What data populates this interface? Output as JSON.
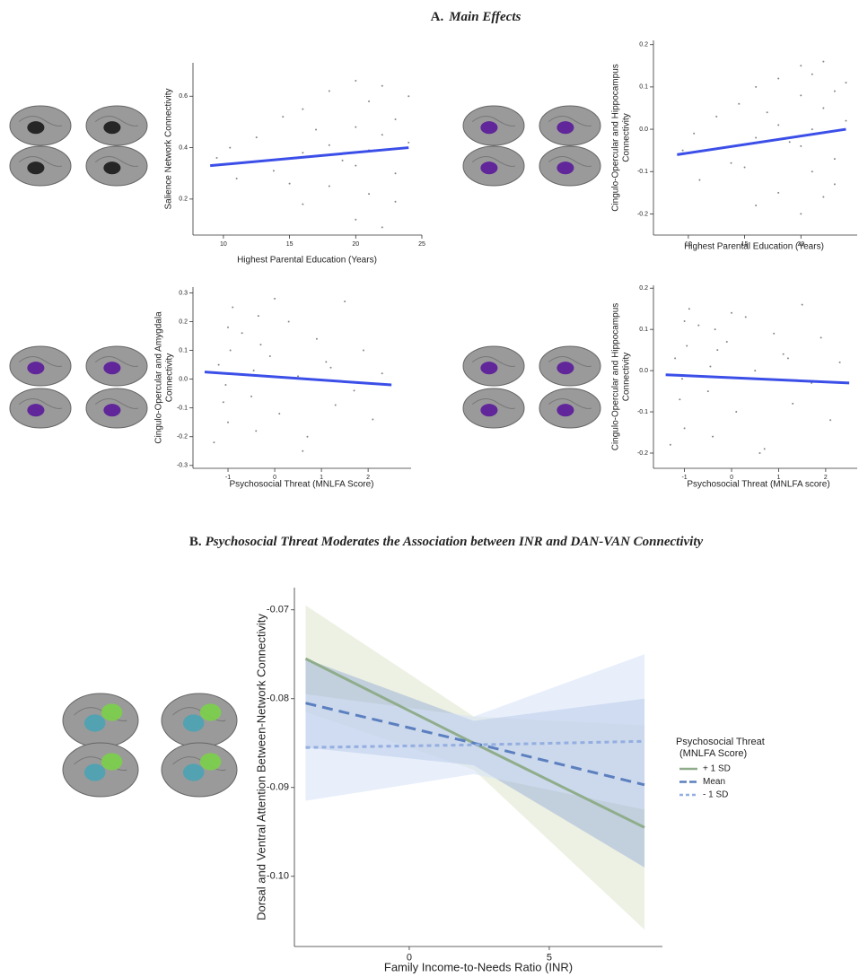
{
  "sections": [
    {
      "letter": "A.",
      "title": "Main Effects"
    },
    {
      "letter": "B.",
      "title": "Psychosocial Threat Moderates the Association between INR and DAN-VAN Connectivity"
    }
  ],
  "chart_data": [
    {
      "type": "scatter",
      "xlabel": "Highest Parental Education (Years)",
      "ylabel": [
        "Salience Network Connectivity"
      ],
      "xlim": [
        7.7,
        25
      ],
      "xticks": [
        10,
        15,
        20,
        25
      ],
      "ylim": [
        0.06,
        0.73
      ],
      "yticks": [
        0.2,
        0.4,
        0.6
      ],
      "points": {
        "color": "#222222",
        "x": [
          9.5,
          11,
          12.5,
          13.8,
          14.5,
          16,
          16,
          16,
          18,
          18,
          18,
          20,
          20,
          20,
          20,
          21,
          21,
          21,
          22,
          22,
          22,
          23,
          23,
          23,
          24,
          24,
          19,
          17,
          15,
          10.5
        ],
        "y": [
          0.36,
          0.28,
          0.44,
          0.31,
          0.52,
          0.18,
          0.55,
          0.38,
          0.25,
          0.62,
          0.41,
          0.12,
          0.48,
          0.33,
          0.66,
          0.22,
          0.58,
          0.39,
          0.09,
          0.45,
          0.64,
          0.3,
          0.51,
          0.19,
          0.42,
          0.6,
          0.35,
          0.47,
          0.26,
          0.4
        ]
      },
      "fit": {
        "color": "#3b4fe8",
        "x": [
          9,
          24
        ],
        "y": [
          0.33,
          0.4
        ]
      }
    },
    {
      "type": "scatter",
      "xlabel": "Highest Parental Education (Years)",
      "ylabel": [
        "Cingulo-Opercular and Hippocampus",
        "Connectivity"
      ],
      "xlim": [
        6.9,
        25
      ],
      "xticks": [
        10,
        15,
        20
      ],
      "ylim": [
        -0.25,
        0.21
      ],
      "yticks": [
        0.2,
        0.1,
        {
          "value": 0,
          "label": "0.0"
        },
        -0.1,
        -0.2
      ],
      "points": {
        "color": "#222222",
        "x": [
          9.5,
          11,
          12.5,
          13.8,
          14.5,
          16,
          16,
          16,
          18,
          18,
          18,
          20,
          20,
          20,
          20,
          21,
          21,
          21,
          22,
          22,
          22,
          23,
          23,
          23,
          24,
          24,
          19,
          17,
          15,
          10.5
        ],
        "y": [
          -0.05,
          -0.12,
          0.03,
          -0.08,
          0.06,
          -0.18,
          0.1,
          -0.02,
          -0.15,
          0.12,
          0.01,
          -0.2,
          0.08,
          -0.04,
          0.15,
          -0.1,
          0.13,
          0.0,
          -0.16,
          0.05,
          0.16,
          -0.07,
          0.09,
          -0.13,
          0.02,
          0.11,
          -0.03,
          0.04,
          -0.09,
          -0.01
        ]
      },
      "fit": {
        "color": "#3b4fe8",
        "x": [
          9,
          24
        ],
        "y": [
          -0.06,
          0.0
        ]
      }
    },
    {
      "type": "scatter",
      "xlabel": "Psychosocial Threat (MNLFA Score)",
      "ylabel": [
        "Cingulo-Opercular and Amygdala",
        "Connectivity"
      ],
      "xlim": [
        -1.75,
        2.92
      ],
      "xticks": [
        -1,
        0,
        1,
        2
      ],
      "ylim": [
        -0.31,
        0.32
      ],
      "yticks": [
        0.3,
        0.2,
        0.1,
        {
          "value": 0,
          "label": "0.0"
        },
        -0.1,
        -0.2,
        -0.3
      ],
      "points": {
        "color": "#222222",
        "x": [
          -1.2,
          -1.1,
          -1.0,
          -1.0,
          -0.95,
          -0.9,
          -1.05,
          -0.45,
          -0.4,
          -0.35,
          -0.3,
          -0.5,
          -0.1,
          0.1,
          0.3,
          0.5,
          0.7,
          0.9,
          1.1,
          1.3,
          1.5,
          1.7,
          1.9,
          2.1,
          2.3,
          -0.7,
          -1.3,
          0.0,
          0.6,
          1.2
        ],
        "y": [
          0.05,
          -0.08,
          0.18,
          -0.15,
          0.1,
          0.25,
          -0.02,
          0.03,
          -0.18,
          0.22,
          0.12,
          -0.06,
          0.08,
          -0.12,
          0.2,
          0.01,
          -0.2,
          0.14,
          0.06,
          -0.09,
          0.27,
          -0.04,
          0.1,
          -0.14,
          0.02,
          0.16,
          -0.22,
          0.28,
          -0.25,
          0.04
        ]
      },
      "fit": {
        "color": "#3b4fe8",
        "x": [
          -1.5,
          2.5
        ],
        "y": [
          0.025,
          -0.02
        ]
      }
    },
    {
      "type": "scatter",
      "xlabel": "Psychosocial Threat (MNLFA score)",
      "ylabel": [
        "Cingulo-Opercular and Hippocampus",
        "Connectivity"
      ],
      "xlim": [
        -1.66,
        2.67
      ],
      "xticks": [
        -1,
        0,
        1,
        2
      ],
      "ylim": [
        -0.237,
        0.207
      ],
      "yticks": [
        0.2,
        0.1,
        {
          "value": 0,
          "label": "0.0"
        },
        -0.1,
        -0.2
      ],
      "points": {
        "color": "#222222",
        "x": [
          -1.2,
          -1.1,
          -1.0,
          -1.0,
          -0.95,
          -0.9,
          -1.05,
          -0.45,
          -0.4,
          -0.35,
          -0.3,
          -0.5,
          -0.1,
          0.1,
          0.3,
          0.5,
          0.7,
          0.9,
          1.1,
          1.3,
          1.5,
          1.7,
          1.9,
          2.1,
          2.3,
          -0.7,
          -1.3,
          0.0,
          0.6,
          1.2
        ],
        "y": [
          0.03,
          -0.07,
          0.12,
          -0.14,
          0.06,
          0.15,
          -0.02,
          0.01,
          -0.16,
          0.1,
          0.05,
          -0.05,
          0.07,
          -0.1,
          0.13,
          0.0,
          -0.19,
          0.09,
          0.04,
          -0.08,
          0.16,
          -0.03,
          0.08,
          -0.12,
          0.02,
          0.11,
          -0.18,
          0.14,
          -0.2,
          0.03
        ]
      },
      "fit": {
        "color": "#3b4fe8",
        "x": [
          -1.4,
          2.5
        ],
        "y": [
          -0.01,
          -0.03
        ]
      }
    },
    {
      "type": "line",
      "xlabel": "Family Income-to-Needs Ratio (INR)",
      "ylabel": [
        "Dorsal and Ventral Attention Between-Network Connectivity"
      ],
      "xlim": [
        -4.1,
        9.04
      ],
      "xticks": [
        0,
        5
      ],
      "ylim": [
        -0.1079,
        -0.0675
      ],
      "yticks": [
        -0.07,
        -0.08,
        -0.09,
        {
          "value": -0.1,
          "label": "-0.10"
        }
      ],
      "legend": "right",
      "legend_title": [
        "Psychosocial Threat",
        "(MNLFA Score)"
      ],
      "x": [
        -3.7,
        2.3,
        8.4
      ],
      "series": [
        {
          "name": "+ 1 SD",
          "color": "#8fad8b",
          "band_color": "#dfe5cc",
          "dash": "solid",
          "values": [
            -0.0755,
            -0.085,
            -0.0945
          ],
          "lower": [
            -0.0815,
            -0.088,
            -0.106
          ],
          "upper": [
            -0.0695,
            -0.082,
            -0.083
          ]
        },
        {
          "name": "Mean",
          "color": "#5b7fbf",
          "band_color": "#9fb3d8",
          "dash": "long",
          "values": [
            -0.0805,
            -0.085,
            -0.0897
          ],
          "lower": [
            -0.0855,
            -0.0875,
            -0.099
          ],
          "upper": [
            -0.0755,
            -0.0825,
            -0.08
          ]
        },
        {
          "name": "- 1 SD",
          "color": "#94aee0",
          "band_color": "#d6e1f7",
          "dash": "short",
          "values": [
            -0.0855,
            -0.0852,
            -0.0848
          ],
          "lower": [
            -0.0915,
            -0.0885,
            -0.0925
          ],
          "upper": [
            -0.0795,
            -0.082,
            -0.075
          ]
        }
      ]
    }
  ]
}
